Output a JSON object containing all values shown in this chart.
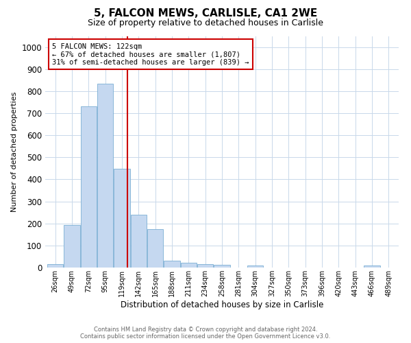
{
  "title_line1": "5, FALCON MEWS, CARLISLE, CA1 2WE",
  "title_line2": "Size of property relative to detached houses in Carlisle",
  "xlabel": "Distribution of detached houses by size in Carlisle",
  "ylabel": "Number of detached properties",
  "bin_labels": [
    "26sqm",
    "49sqm",
    "72sqm",
    "95sqm",
    "119sqm",
    "142sqm",
    "165sqm",
    "188sqm",
    "211sqm",
    "234sqm",
    "258sqm",
    "281sqm",
    "304sqm",
    "327sqm",
    "350sqm",
    "373sqm",
    "396sqm",
    "420sqm",
    "443sqm",
    "466sqm",
    "489sqm"
  ],
  "bar_heights": [
    15,
    193,
    730,
    835,
    448,
    240,
    175,
    30,
    22,
    17,
    12,
    0,
    8,
    0,
    0,
    0,
    0,
    0,
    0,
    8,
    0
  ],
  "bar_color": "#c5d8f0",
  "bar_edge_color": "#7bafd4",
  "vline_color": "#cc0000",
  "vline_x": 4.35,
  "annotation_text": "5 FALCON MEWS: 122sqm\n← 67% of detached houses are smaller (1,807)\n31% of semi-detached houses are larger (839) →",
  "annotation_box_color": "#cc0000",
  "ylim": [
    0,
    1050
  ],
  "yticks": [
    0,
    100,
    200,
    300,
    400,
    500,
    600,
    700,
    800,
    900,
    1000
  ],
  "footer_line1": "Contains HM Land Registry data © Crown copyright and database right 2024.",
  "footer_line2": "Contains public sector information licensed under the Open Government Licence v3.0.",
  "background_color": "#ffffff",
  "grid_color": "#c8d8ea"
}
